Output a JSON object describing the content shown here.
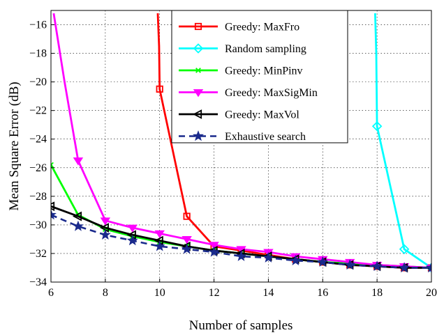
{
  "chart_data": {
    "type": "line",
    "title": "",
    "xlabel": "Number of samples",
    "ylabel": "Mean Square Error (dB)",
    "xlim": [
      6,
      20
    ],
    "ylim": [
      -34,
      -15
    ],
    "xticks": [
      "6",
      "8",
      "10",
      "12",
      "14",
      "16",
      "18",
      "20"
    ],
    "yticks": [
      "−34",
      "−32",
      "−30",
      "−28",
      "−26",
      "−24",
      "−22",
      "−20",
      "−18",
      "−16"
    ],
    "grid": true,
    "legend_position": "top-right",
    "series": [
      {
        "name": "Greedy: MaxFro",
        "color": "#ff0000",
        "marker": "square",
        "dash": "solid",
        "x": [
          10,
          11,
          12,
          13,
          14,
          15,
          16,
          17,
          18,
          19,
          20
        ],
        "y": [
          -20.5,
          -29.4,
          -31.5,
          -31.8,
          -32.1,
          -32.4,
          -32.6,
          -32.8,
          -32.9,
          -33.0,
          -33.0
        ],
        "pre": [
          [
            9.93,
            -15.2
          ],
          [
            9.98,
            -17.5
          ]
        ]
      },
      {
        "name": "Random sampling",
        "color": "#00ffff",
        "marker": "diamond",
        "dash": "solid",
        "x": [
          18,
          19,
          20
        ],
        "y": [
          -23.1,
          -31.7,
          -33.0
        ],
        "pre": [
          [
            17.93,
            -15.2
          ],
          [
            17.97,
            -18.0
          ]
        ]
      },
      {
        "name": "Greedy: MinPinv",
        "color": "#00ff00",
        "marker": "x",
        "dash": "solid",
        "x": [
          6,
          7,
          8,
          9,
          10,
          11,
          12,
          13,
          14,
          15,
          16,
          17,
          18,
          19,
          20
        ],
        "y": [
          -25.8,
          -29.3,
          -30.3,
          -30.8,
          -31.2,
          -31.5,
          -31.8,
          -32.0,
          -32.2,
          -32.4,
          -32.6,
          -32.7,
          -32.8,
          -32.9,
          -33.0
        ]
      },
      {
        "name": "Greedy: MaxSigMin",
        "color": "#ff00ff",
        "marker": "triangle-down",
        "dash": "solid",
        "x": [
          7,
          8,
          9,
          10,
          11,
          12,
          13,
          14,
          15,
          16,
          17,
          18,
          19,
          20
        ],
        "y": [
          -25.5,
          -29.7,
          -30.2,
          -30.6,
          -31.0,
          -31.4,
          -31.7,
          -31.9,
          -32.2,
          -32.4,
          -32.6,
          -32.8,
          -32.9,
          -33.0
        ],
        "pre": [
          [
            6.1,
            -15.2
          ],
          [
            6.5,
            -20.0
          ]
        ]
      },
      {
        "name": "Greedy: MaxVol",
        "color": "#000000",
        "marker": "triangle-left",
        "dash": "solid",
        "x": [
          6,
          7,
          8,
          9,
          10,
          11,
          12,
          13,
          14,
          15,
          16,
          17,
          18,
          19,
          20
        ],
        "y": [
          -28.7,
          -29.4,
          -30.2,
          -30.7,
          -31.1,
          -31.5,
          -31.8,
          -32.0,
          -32.2,
          -32.4,
          -32.6,
          -32.8,
          -32.9,
          -33.0,
          -33.0
        ]
      },
      {
        "name": "Exhaustive search",
        "color": "#1a2a8c",
        "marker": "star",
        "dash": "dashed",
        "x": [
          6,
          7,
          8,
          9,
          10,
          11,
          12,
          13,
          14,
          15,
          16,
          17,
          18,
          19,
          20
        ],
        "y": [
          -29.3,
          -30.1,
          -30.7,
          -31.1,
          -31.5,
          -31.7,
          -31.9,
          -32.2,
          -32.3,
          -32.5,
          -32.6,
          -32.8,
          -32.9,
          -33.0,
          -33.0
        ]
      }
    ]
  }
}
